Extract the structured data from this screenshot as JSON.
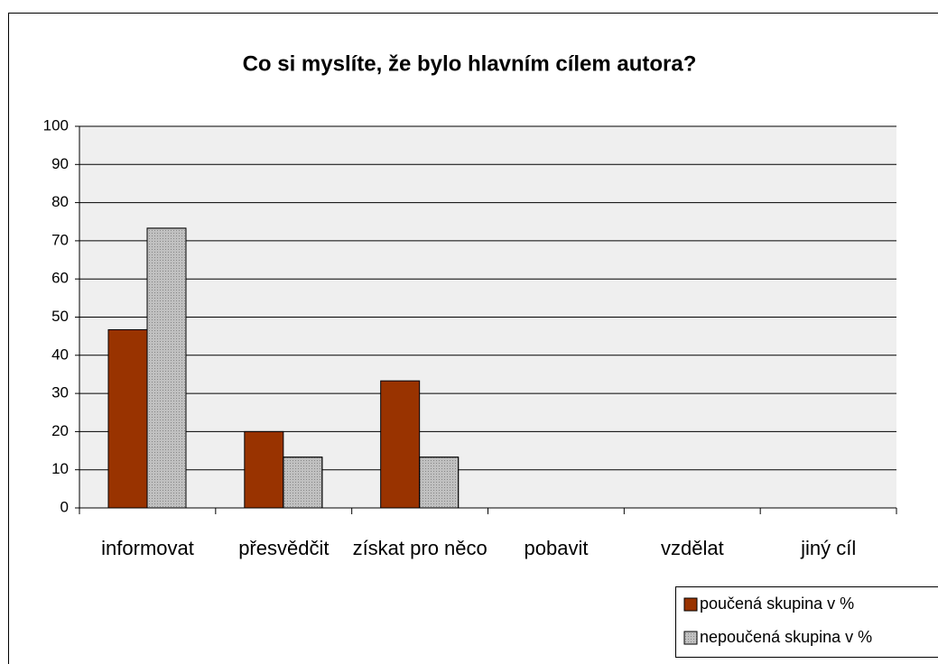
{
  "chart_data": {
    "type": "bar",
    "title": "Co si myslíte, že bylo hlavním cílem autora?",
    "categories": [
      "informovat",
      "přesvědčit",
      "získat pro něco",
      "pobavit",
      "vzdělat",
      "jiný cíl"
    ],
    "series": [
      {
        "name": "poučená skupina v %",
        "color": "#993300",
        "values": [
          46.7,
          20,
          33.3,
          0,
          0,
          0
        ]
      },
      {
        "name": "nepoučená skupina v %",
        "color": "#c0c0c0",
        "values": [
          73.3,
          13.3,
          13.3,
          0,
          0,
          0
        ]
      }
    ],
    "ylim": [
      0,
      100
    ],
    "yticks": [
      0,
      10,
      20,
      30,
      40,
      50,
      60,
      70,
      80,
      90,
      100
    ],
    "grid": true,
    "legend": "bottom-right"
  }
}
